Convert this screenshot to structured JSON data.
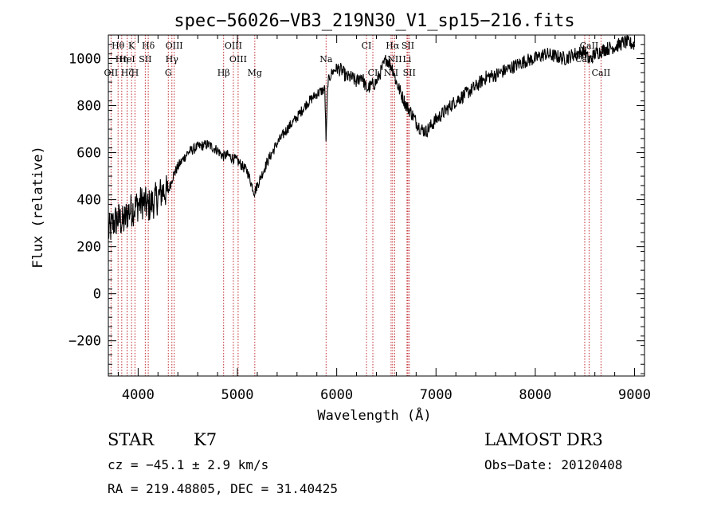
{
  "chart_data": {
    "type": "line",
    "title": "spec−56026−VB3_219N30_V1_sp15−216.fits",
    "xlabel": "Wavelength (Å)",
    "ylabel": "Flux (relative)",
    "xlim": [
      3700,
      9100
    ],
    "ylim": [
      -350,
      1100
    ],
    "x_ticks": [
      4000,
      5000,
      6000,
      7000,
      8000,
      9000
    ],
    "x_tick_labels": [
      "4000",
      "5000",
      "6000",
      "7000",
      "8000",
      "9000"
    ],
    "y_ticks": [
      -200,
      0,
      200,
      400,
      600,
      800,
      1000
    ],
    "y_tick_labels": [
      "−200",
      "0",
      "200",
      "400",
      "600",
      "800",
      "1000"
    ],
    "series": [
      {
        "name": "flux",
        "x": [
          3700,
          3750,
          3800,
          3850,
          3900,
          3950,
          4000,
          4050,
          4100,
          4150,
          4200,
          4250,
          4300,
          4350,
          4400,
          4500,
          4600,
          4700,
          4800,
          4850,
          4900,
          5000,
          5100,
          5170,
          5200,
          5300,
          5400,
          5500,
          5600,
          5700,
          5800,
          5880,
          5893,
          5910,
          5950,
          6000,
          6050,
          6100,
          6150,
          6200,
          6250,
          6300,
          6400,
          6500,
          6563,
          6600,
          6650,
          6700,
          6750,
          6800,
          6850,
          6900,
          7000,
          7100,
          7200,
          7300,
          7400,
          7500,
          7600,
          7700,
          7800,
          7900,
          8000,
          8100,
          8200,
          8300,
          8400,
          8500,
          8542,
          8600,
          8700,
          8800,
          8900,
          9000
        ],
        "y": [
          260,
          300,
          320,
          300,
          350,
          360,
          380,
          390,
          370,
          390,
          410,
          440,
          430,
          500,
          540,
          600,
          625,
          635,
          610,
          585,
          590,
          565,
          520,
          430,
          460,
          560,
          640,
          700,
          750,
          810,
          850,
          870,
          640,
          900,
          940,
          960,
          950,
          920,
          920,
          900,
          930,
          870,
          900,
          1000,
          960,
          900,
          850,
          800,
          770,
          730,
          700,
          690,
          740,
          780,
          820,
          850,
          880,
          920,
          930,
          950,
          970,
          990,
          1000,
          1020,
          1010,
          1000,
          1020,
          1030,
          990,
          1020,
          1040,
          1050,
          1070,
          1060
        ]
      }
    ],
    "spectral_lines": [
      {
        "label": "Hθ",
        "wavelength": 3798,
        "row": 1
      },
      {
        "label": "K",
        "wavelength": 3934,
        "row": 1
      },
      {
        "label": "Hδ",
        "wavelength": 4102,
        "row": 1
      },
      {
        "label": "OIII",
        "wavelength": 4363,
        "row": 1
      },
      {
        "label": "OIII",
        "wavelength": 4959,
        "row": 1
      },
      {
        "label": "CI",
        "wavelength": 6300,
        "row": 1
      },
      {
        "label": "Hα",
        "wavelength": 6563,
        "row": 1
      },
      {
        "label": "SII",
        "wavelength": 6717,
        "row": 1
      },
      {
        "label": "CaII",
        "wavelength": 8542,
        "row": 1
      },
      {
        "label": "Hη",
        "wavelength": 3835,
        "row": 2
      },
      {
        "label": "HeI",
        "wavelength": 3889,
        "row": 2
      },
      {
        "label": "SII",
        "wavelength": 4072,
        "row": 2
      },
      {
        "label": "Hγ",
        "wavelength": 4340,
        "row": 2
      },
      {
        "label": "OIII",
        "wavelength": 5007,
        "row": 2
      },
      {
        "label": "Na",
        "wavelength": 5893,
        "row": 2
      },
      {
        "label": "NII",
        "wavelength": 6584,
        "row": 2
      },
      {
        "label": "Li",
        "wavelength": 6708,
        "row": 2
      },
      {
        "label": "CaII",
        "wavelength": 8498,
        "row": 2
      },
      {
        "label": "OII",
        "wavelength": 3727,
        "row": 3
      },
      {
        "label": "Hζ",
        "wavelength": 3889,
        "row": 3
      },
      {
        "label": "H",
        "wavelength": 3968,
        "row": 3
      },
      {
        "label": "G",
        "wavelength": 4304,
        "row": 3
      },
      {
        "label": "Hβ",
        "wavelength": 4861,
        "row": 3
      },
      {
        "label": "Mg",
        "wavelength": 5175,
        "row": 3
      },
      {
        "label": "CI",
        "wavelength": 6364,
        "row": 3
      },
      {
        "label": "NII",
        "wavelength": 6548,
        "row": 3
      },
      {
        "label": "SII",
        "wavelength": 6731,
        "row": 3
      },
      {
        "label": "CaII",
        "wavelength": 8662,
        "row": 3
      }
    ],
    "line_color": "#000000",
    "marker_color": "#c0282d"
  },
  "info": {
    "object_class": "STAR",
    "subclass": "K7",
    "survey": "LAMOST DR3",
    "cz": "cz = −45.1 ± 2.9 km/s",
    "obs_date": "Obs−Date: 20120408",
    "coords": "RA = 219.48805, DEC =  31.40425"
  }
}
